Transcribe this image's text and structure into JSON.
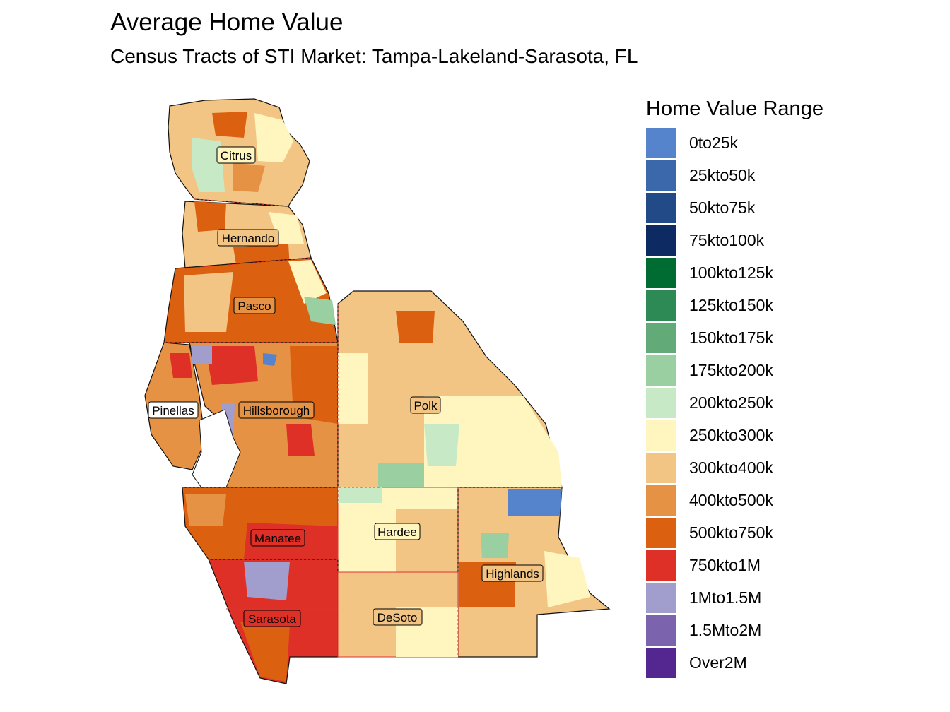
{
  "title": "Average Home Value",
  "subtitle": "Census Tracts of STI Market: Tampa-Lakeland-Sarasota, FL",
  "legend": {
    "title": "Home Value Range",
    "items": [
      {
        "label": "0to25k",
        "color": "#5584CC"
      },
      {
        "label": "25kto50k",
        "color": "#3A68AB"
      },
      {
        "label": "50kto75k",
        "color": "#224A86"
      },
      {
        "label": "75kto100k",
        "color": "#0D2A63"
      },
      {
        "label": "100kto125k",
        "color": "#016C32"
      },
      {
        "label": "125kto150k",
        "color": "#2E8A55"
      },
      {
        "label": "150kto175k",
        "color": "#62AB79"
      },
      {
        "label": "175kto200k",
        "color": "#99CFA1"
      },
      {
        "label": "200kto250k",
        "color": "#C8E9C6"
      },
      {
        "label": "250kto300k",
        "color": "#FFF5BF"
      },
      {
        "label": "300kto400k",
        "color": "#F2C584"
      },
      {
        "label": "400kto500k",
        "color": "#E69245"
      },
      {
        "label": "500kto750k",
        "color": "#DB600F"
      },
      {
        "label": "750kto1M",
        "color": "#DE3027"
      },
      {
        "label": "1Mto1.5M",
        "color": "#A19DCC"
      },
      {
        "label": "1.5Mto2M",
        "color": "#7B63AE"
      },
      {
        "label": "Over2M",
        "color": "#54268F"
      }
    ]
  },
  "counties": {
    "citrus": "Citrus",
    "hernando": "Hernando",
    "pasco": "Pasco",
    "pinellas": "Pinellas",
    "hillsborough": "Hillsborough",
    "polk": "Polk",
    "manatee": "Manatee",
    "hardee": "Hardee",
    "highlands": "Highlands",
    "sarasota": "Sarasota",
    "desoto": "DeSoto"
  }
}
